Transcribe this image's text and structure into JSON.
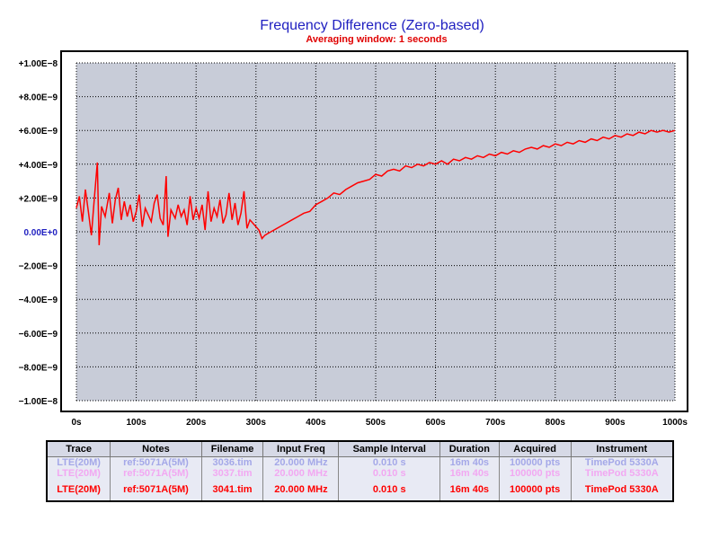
{
  "chart_data": {
    "type": "line",
    "title": "Frequency Difference (Zero-based)",
    "subtitle": "Averaging window: 1 seconds",
    "xlabel": "",
    "ylabel": "",
    "xlim": [
      0,
      1000
    ],
    "ylim": [
      -1e-08,
      1e-08
    ],
    "grid": true,
    "x_ticks": [
      "0s",
      "100s",
      "200s",
      "300s",
      "400s",
      "500s",
      "600s",
      "700s",
      "800s",
      "900s",
      "1000s"
    ],
    "y_ticks": [
      "+1.00E−8",
      "+8.00E−9",
      "+6.00E−9",
      "+4.00E−9",
      "+2.00E−9",
      "0.00E+0",
      "−2.00E−9",
      "−4.00E−9",
      "−6.00E−9",
      "−8.00E−9",
      "−1.00E−8"
    ],
    "colors": {
      "series": "#ff0000",
      "plot_bg": "#c8ccd8",
      "title": "#1f1fc0",
      "subtitle": "#e00000"
    },
    "series": [
      {
        "color": "#ff0000",
        "x_unit": "s",
        "points": [
          [
            0,
            1.4e-09
          ],
          [
            5,
            2.1e-09
          ],
          [
            10,
            6e-10
          ],
          [
            15,
            2.5e-09
          ],
          [
            20,
            1.2e-09
          ],
          [
            25,
            -2e-10
          ],
          [
            30,
            2e-09
          ],
          [
            35,
            4.1e-09
          ],
          [
            38,
            -8e-10
          ],
          [
            42,
            1.5e-09
          ],
          [
            48,
            9e-10
          ],
          [
            55,
            2.3e-09
          ],
          [
            60,
            5e-10
          ],
          [
            65,
            1.9e-09
          ],
          [
            70,
            2.6e-09
          ],
          [
            75,
            7e-10
          ],
          [
            80,
            1.8e-09
          ],
          [
            85,
            9e-10
          ],
          [
            90,
            1.6e-09
          ],
          [
            95,
            6e-10
          ],
          [
            100,
            1.2e-09
          ],
          [
            105,
            2.2e-09
          ],
          [
            110,
            3e-10
          ],
          [
            115,
            1.4e-09
          ],
          [
            120,
            1e-09
          ],
          [
            125,
            6e-10
          ],
          [
            130,
            1.7e-09
          ],
          [
            135,
            2.2e-09
          ],
          [
            140,
            8e-10
          ],
          [
            145,
            4e-10
          ],
          [
            150,
            3.3e-09
          ],
          [
            153,
            -3e-10
          ],
          [
            158,
            1.3e-09
          ],
          [
            165,
            8e-10
          ],
          [
            170,
            1.6e-09
          ],
          [
            175,
            9e-10
          ],
          [
            180,
            1.3e-09
          ],
          [
            185,
            4e-10
          ],
          [
            190,
            2.1e-09
          ],
          [
            195,
            7e-10
          ],
          [
            200,
            1.4e-09
          ],
          [
            205,
            8e-10
          ],
          [
            210,
            1.6e-09
          ],
          [
            215,
            1e-10
          ],
          [
            220,
            2.4e-09
          ],
          [
            225,
            6e-10
          ],
          [
            230,
            1.4e-09
          ],
          [
            235,
            9e-10
          ],
          [
            240,
            1.9e-09
          ],
          [
            245,
            5e-10
          ],
          [
            250,
            1e-09
          ],
          [
            255,
            2.3e-09
          ],
          [
            260,
            7e-10
          ],
          [
            265,
            1.7e-09
          ],
          [
            270,
            4e-10
          ],
          [
            275,
            1.1e-09
          ],
          [
            280,
            2.4e-09
          ],
          [
            285,
            2e-10
          ],
          [
            290,
            7e-10
          ],
          [
            295,
            5e-10
          ],
          [
            300,
            3e-10
          ],
          [
            305,
            1e-10
          ],
          [
            310,
            -4e-10
          ],
          [
            315,
            -2e-10
          ],
          [
            320,
            -1e-10
          ],
          [
            330,
            1e-10
          ],
          [
            340,
            3e-10
          ],
          [
            350,
            5e-10
          ],
          [
            360,
            7e-10
          ],
          [
            370,
            9e-10
          ],
          [
            380,
            1.1e-09
          ],
          [
            390,
            1.2e-09
          ],
          [
            400,
            1.6e-09
          ],
          [
            410,
            1.8e-09
          ],
          [
            420,
            2e-09
          ],
          [
            430,
            2.3e-09
          ],
          [
            440,
            2.2e-09
          ],
          [
            450,
            2.5e-09
          ],
          [
            460,
            2.7e-09
          ],
          [
            470,
            2.9e-09
          ],
          [
            480,
            3e-09
          ],
          [
            490,
            3.1e-09
          ],
          [
            500,
            3.4e-09
          ],
          [
            510,
            3.3e-09
          ],
          [
            520,
            3.6e-09
          ],
          [
            530,
            3.7e-09
          ],
          [
            540,
            3.6e-09
          ],
          [
            550,
            3.9e-09
          ],
          [
            560,
            3.8e-09
          ],
          [
            570,
            4e-09
          ],
          [
            580,
            3.9e-09
          ],
          [
            590,
            4.1e-09
          ],
          [
            600,
            4e-09
          ],
          [
            610,
            4.2e-09
          ],
          [
            620,
            4e-09
          ],
          [
            630,
            4.3e-09
          ],
          [
            640,
            4.2e-09
          ],
          [
            650,
            4.4e-09
          ],
          [
            660,
            4.3e-09
          ],
          [
            670,
            4.5e-09
          ],
          [
            680,
            4.4e-09
          ],
          [
            690,
            4.6e-09
          ],
          [
            700,
            4.5e-09
          ],
          [
            710,
            4.7e-09
          ],
          [
            720,
            4.6e-09
          ],
          [
            730,
            4.8e-09
          ],
          [
            740,
            4.7e-09
          ],
          [
            750,
            4.9e-09
          ],
          [
            760,
            5e-09
          ],
          [
            770,
            4.9e-09
          ],
          [
            780,
            5.1e-09
          ],
          [
            790,
            5e-09
          ],
          [
            800,
            5.2e-09
          ],
          [
            810,
            5.1e-09
          ],
          [
            820,
            5.3e-09
          ],
          [
            830,
            5.2e-09
          ],
          [
            840,
            5.4e-09
          ],
          [
            850,
            5.3e-09
          ],
          [
            860,
            5.5e-09
          ],
          [
            870,
            5.4e-09
          ],
          [
            880,
            5.6e-09
          ],
          [
            890,
            5.5e-09
          ],
          [
            900,
            5.7e-09
          ],
          [
            910,
            5.6e-09
          ],
          [
            920,
            5.8e-09
          ],
          [
            930,
            5.7e-09
          ],
          [
            940,
            5.9e-09
          ],
          [
            950,
            5.8e-09
          ],
          [
            960,
            6e-09
          ],
          [
            970,
            5.9e-09
          ],
          [
            980,
            6e-09
          ],
          [
            990,
            5.9e-09
          ],
          [
            1000,
            6e-09
          ]
        ]
      }
    ]
  },
  "legend": {
    "headers": [
      "Trace",
      "Notes",
      "Filename",
      "Input Freq",
      "Sample Interval",
      "Duration",
      "Acquired",
      "Instrument"
    ],
    "rows": [
      {
        "color": "#a4a8e8",
        "cells": [
          "LTE(20M)",
          "ref:5071A(5M)",
          "3036.tim",
          "20.000 MHz",
          "0.010 s",
          "16m 40s",
          "100000 pts",
          "TimePod 5330A"
        ]
      },
      {
        "color": "#f2a8f2",
        "cells": [
          "LTE(20M)",
          "ref:5071A(5M)",
          "3037.tim",
          "20.000 MHz",
          "0.010 s",
          "16m 40s",
          "100000 pts",
          "TimePod 5330A"
        ]
      },
      {
        "color": "#ff0000",
        "cells": [
          "LTE(20M)",
          "ref:5071A(5M)",
          "3041.tim",
          "20.000 MHz",
          "0.010 s",
          "16m 40s",
          "100000 pts",
          "TimePod 5330A"
        ]
      }
    ]
  }
}
